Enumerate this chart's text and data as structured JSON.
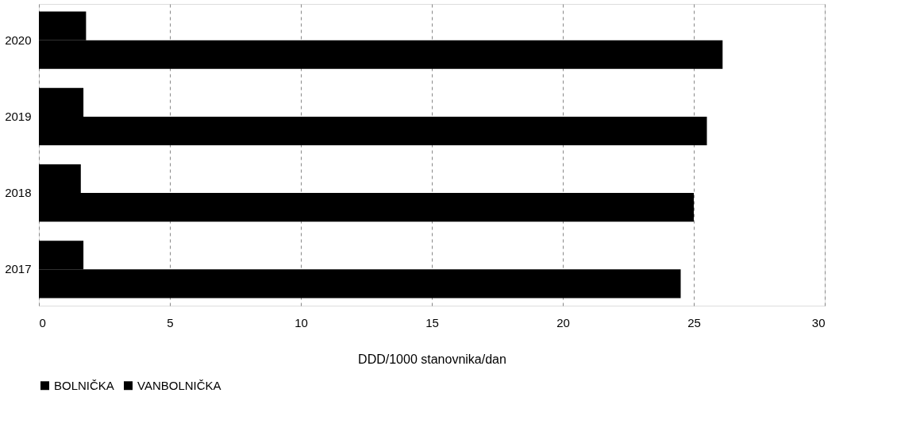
{
  "chart_data": {
    "type": "bar",
    "orientation": "horizontal",
    "xlabel": "DDD/1000 stanovnika/dan",
    "categories": [
      "2020",
      "2019",
      "2018",
      "2017"
    ],
    "series": [
      {
        "name": "BOLNIČKA",
        "color": "#000000",
        "values": [
          1.8,
          1.7,
          1.6,
          1.7
        ]
      },
      {
        "name": "VANBOLNIČKA",
        "color": "#000000",
        "values": [
          26.1,
          25.5,
          25.0,
          24.5
        ]
      }
    ],
    "xlim": [
      0,
      30
    ],
    "xticks": [
      0,
      5,
      10,
      15,
      20,
      25,
      30
    ],
    "grid": "x",
    "legend": "bottom"
  }
}
